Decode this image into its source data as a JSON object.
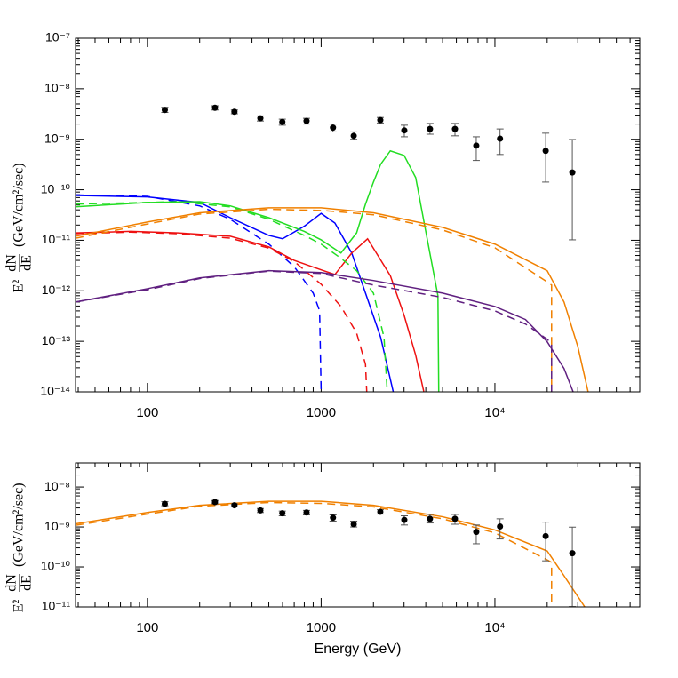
{
  "chart_data": [
    {
      "type": "line",
      "log_x": true,
      "log_y": true,
      "xlim": [
        38.6,
        68200
      ],
      "ylim": [
        1e-14,
        1e-07
      ],
      "xticks": [
        100,
        1000,
        {
          "value": 10000,
          "label": "10⁴"
        }
      ],
      "yticks": [
        {
          "value": 1e-14,
          "label": "10⁻¹⁴"
        },
        {
          "value": 1e-13,
          "label": "10⁻¹³"
        },
        {
          "value": 1e-12,
          "label": "10⁻¹²"
        },
        {
          "value": 1e-11,
          "label": "10⁻¹¹"
        },
        {
          "value": 1e-10,
          "label": "10⁻¹⁰"
        },
        {
          "value": 1e-09,
          "label": "10⁻⁹"
        },
        {
          "value": 1e-08,
          "label": "10⁻⁸"
        },
        {
          "value": 1e-07,
          "label": "10⁻⁷"
        }
      ],
      "ylabel": {
        "lhs": "E²",
        "num": "dN",
        "den": "dE",
        "units": "(GeV/cm²/sec)"
      },
      "points": {
        "color": "#000000",
        "x": [
          126,
          245,
          317,
          447,
          598,
          824,
          1170,
          1540,
          2190,
          3010,
          4230,
          5890,
          7810,
          10700,
          19600,
          27900
        ],
        "values": [
          3.8e-09,
          4.2e-09,
          3.5e-09,
          2.6e-09,
          2.2e-09,
          2.3e-09,
          1.7e-09,
          1.17e-09,
          2.4e-09,
          1.5e-09,
          1.6e-09,
          1.6e-09,
          7.5e-10,
          1.03e-09,
          5.9e-10,
          2.2e-10
        ],
        "lower": [
          3.4e-09,
          3.8e-09,
          3.2e-09,
          2.3e-09,
          1.9e-09,
          2e-09,
          1.4e-09,
          1e-09,
          2.1e-09,
          1.12e-09,
          1.26e-09,
          1.17e-09,
          3.8e-10,
          5e-10,
          1.42e-10,
          1.02e-11
        ],
        "upper": [
          4.3e-09,
          4.6e-09,
          3.8e-09,
          2.9e-09,
          2.5e-09,
          2.6e-09,
          2e-09,
          1.4e-09,
          2.7e-09,
          1.9e-09,
          2.06e-09,
          2.06e-09,
          1.12e-09,
          1.6e-09,
          1.32e-09,
          9.9e-10
        ]
      },
      "series": [
        {
          "color": "#0000ff",
          "dash": false,
          "x": [
            38.6,
            100,
            200,
            300,
            500,
            600,
            800,
            1000,
            1200,
            1500,
            1800,
            2200,
            2600
          ],
          "values": [
            7.7e-11,
            7.2e-11,
            5.6e-11,
            2.8e-11,
            1.25e-11,
            1.07e-11,
            1.9e-11,
            3.4e-11,
            2.2e-11,
            5.6e-12,
            9e-13,
            1.2e-13,
            1e-14
          ]
        },
        {
          "color": "#0000ff",
          "dash": true,
          "x": [
            38.6,
            100,
            200,
            300,
            500,
            700,
            900,
            980,
            1000
          ],
          "values": [
            7.9e-11,
            7.4e-11,
            4.8e-11,
            2.6e-11,
            8.4e-12,
            3e-12,
            9e-13,
            4e-13,
            1e-14
          ]
        },
        {
          "color": "#ee1111",
          "dash": false,
          "x": [
            38.6,
            80,
            150,
            300,
            500,
            700,
            1000,
            1200,
            1500,
            1850,
            2500,
            3000,
            3500,
            3900
          ],
          "values": [
            1.4e-11,
            1.5e-11,
            1.4e-11,
            1.2e-11,
            7.4e-12,
            4e-12,
            2.6e-12,
            2.1e-12,
            5.6e-12,
            1.07e-11,
            2e-12,
            3.3e-13,
            5.3e-14,
            1e-14
          ]
        },
        {
          "color": "#ee1111",
          "dash": true,
          "x": [
            38.6,
            80,
            150,
            300,
            500,
            700,
            1000,
            1300,
            1600,
            1800,
            1830
          ],
          "values": [
            1.35e-11,
            1.45e-11,
            1.35e-11,
            1.1e-11,
            7e-12,
            3.8e-12,
            1.35e-12,
            4.9e-13,
            1.46e-13,
            3.5e-14,
            1e-14
          ]
        },
        {
          "color": "#22dd22",
          "dash": false,
          "x": [
            38.6,
            100,
            200,
            300,
            500,
            800,
            1000,
            1300,
            1600,
            1800,
            2000,
            2200,
            2500,
            3000,
            3500,
            4000,
            4700,
            4750
          ],
          "values": [
            4.6e-11,
            5.6e-11,
            5.8e-11,
            4.8e-11,
            2.8e-11,
            1.5e-11,
            1.02e-11,
            5.6e-12,
            1.4e-11,
            5.2e-11,
            1.42e-10,
            3.2e-10,
            5.9e-10,
            4.8e-10,
            1.74e-10,
            1.5e-11,
            8e-13,
            1e-14
          ]
        },
        {
          "color": "#22dd22",
          "dash": true,
          "x": [
            38.6,
            150,
            300,
            500,
            800,
            1000,
            1300,
            1600,
            2000,
            2300,
            2400
          ],
          "values": [
            5.2e-11,
            5.8e-11,
            4.6e-11,
            2.6e-11,
            1.25e-11,
            8.4e-12,
            4.4e-12,
            2.5e-12,
            9e-13,
            1.2e-13,
            1e-14
          ]
        },
        {
          "color": "#f08000",
          "dash": false,
          "x": [
            38.6,
            100,
            200,
            500,
            1000,
            2000,
            5000,
            10000,
            20000,
            25000,
            30000,
            34400
          ],
          "values": [
            1.2e-11,
            2.3e-11,
            3.5e-11,
            4.4e-11,
            4.4e-11,
            3.5e-11,
            1.8e-11,
            8.4e-12,
            2.5e-12,
            6e-13,
            7.9e-14,
            1e-14
          ]
        },
        {
          "color": "#f08000",
          "dash": true,
          "x": [
            38.6,
            100,
            200,
            500,
            1000,
            2000,
            5000,
            10000,
            20000,
            21200,
            21200
          ],
          "values": [
            1.1e-11,
            2.1e-11,
            3.3e-11,
            4.1e-11,
            3.9e-11,
            3.2e-11,
            1.6e-11,
            7.1e-12,
            1.5e-12,
            1.3e-12,
            1e-14
          ]
        },
        {
          "color": "#602080",
          "dash": false,
          "x": [
            38.6,
            100,
            200,
            500,
            1000,
            2000,
            5000,
            10000,
            15000,
            20000,
            25000,
            28200
          ],
          "values": [
            6e-13,
            1.1e-12,
            1.8e-12,
            2.5e-12,
            2.3e-12,
            1.6e-12,
            9e-13,
            4.9e-13,
            2.7e-13,
            9.8e-14,
            2.9e-14,
            1e-14
          ]
        },
        {
          "color": "#602080",
          "dash": true,
          "x": [
            38.6,
            100,
            200,
            500,
            1000,
            2000,
            5000,
            10000,
            15000,
            20000,
            21200,
            21200
          ],
          "values": [
            6e-13,
            1.05e-12,
            1.75e-12,
            2.45e-12,
            2.2e-12,
            1.3e-12,
            7.4e-13,
            4e-13,
            2.2e-13,
            1.1e-13,
            9e-14,
            1e-14
          ]
        }
      ]
    },
    {
      "type": "line",
      "log_x": true,
      "log_y": true,
      "xlim": [
        38.6,
        68200
      ],
      "ylim": [
        1e-11,
        4e-08
      ],
      "xticks": [
        100,
        1000,
        {
          "value": 10000,
          "label": "10⁴"
        }
      ],
      "yticks": [
        {
          "value": 1e-11,
          "label": "10⁻¹¹"
        },
        {
          "value": 1e-10,
          "label": "10⁻¹⁰"
        },
        {
          "value": 1e-09,
          "label": "10⁻⁹"
        },
        {
          "value": 1e-08,
          "label": "10⁻⁸"
        }
      ],
      "xlabel": "Energy (GeV)",
      "ylabel": {
        "lhs": "E²",
        "num": "dN",
        "den": "dE",
        "units": "(GeV/cm²/sec)"
      },
      "points": {
        "color": "#000000",
        "x": [
          126,
          245,
          317,
          447,
          598,
          824,
          1170,
          1540,
          2190,
          3010,
          4230,
          5890,
          7810,
          10700,
          19600,
          27900
        ],
        "values": [
          3.8e-09,
          4.2e-09,
          3.5e-09,
          2.6e-09,
          2.2e-09,
          2.3e-09,
          1.7e-09,
          1.17e-09,
          2.4e-09,
          1.5e-09,
          1.6e-09,
          1.6e-09,
          7.5e-10,
          1.03e-09,
          5.9e-10,
          2.2e-10
        ],
        "lower": [
          3.4e-09,
          3.8e-09,
          3.2e-09,
          2.3e-09,
          1.9e-09,
          2e-09,
          1.4e-09,
          1e-09,
          2.1e-09,
          1.12e-09,
          1.26e-09,
          1.17e-09,
          3.8e-10,
          5e-10,
          1.42e-10,
          1.02e-11
        ],
        "upper": [
          4.3e-09,
          4.6e-09,
          3.8e-09,
          2.9e-09,
          2.5e-09,
          2.6e-09,
          2e-09,
          1.4e-09,
          2.7e-09,
          1.9e-09,
          2.06e-09,
          2.06e-09,
          1.12e-09,
          1.6e-09,
          1.32e-09,
          9.9e-10
        ]
      },
      "series": [
        {
          "color": "#f08000",
          "dash": false,
          "x": [
            38.6,
            100,
            200,
            500,
            1000,
            2000,
            5000,
            10000,
            20000,
            25000,
            32900
          ],
          "values": [
            1.2e-09,
            2.3e-09,
            3.5e-09,
            4.4e-09,
            4.4e-09,
            3.5e-09,
            1.8e-09,
            8.4e-10,
            2.5e-10,
            6e-11,
            1e-11
          ]
        },
        {
          "color": "#f08000",
          "dash": true,
          "x": [
            38.6,
            100,
            200,
            500,
            1000,
            2000,
            5000,
            10000,
            20000,
            21200,
            21200
          ],
          "values": [
            1.1e-09,
            2.1e-09,
            3.3e-09,
            4.1e-09,
            3.9e-09,
            3.2e-09,
            1.6e-09,
            7.1e-10,
            1.5e-10,
            1.3e-10,
            1e-11
          ]
        }
      ]
    }
  ]
}
